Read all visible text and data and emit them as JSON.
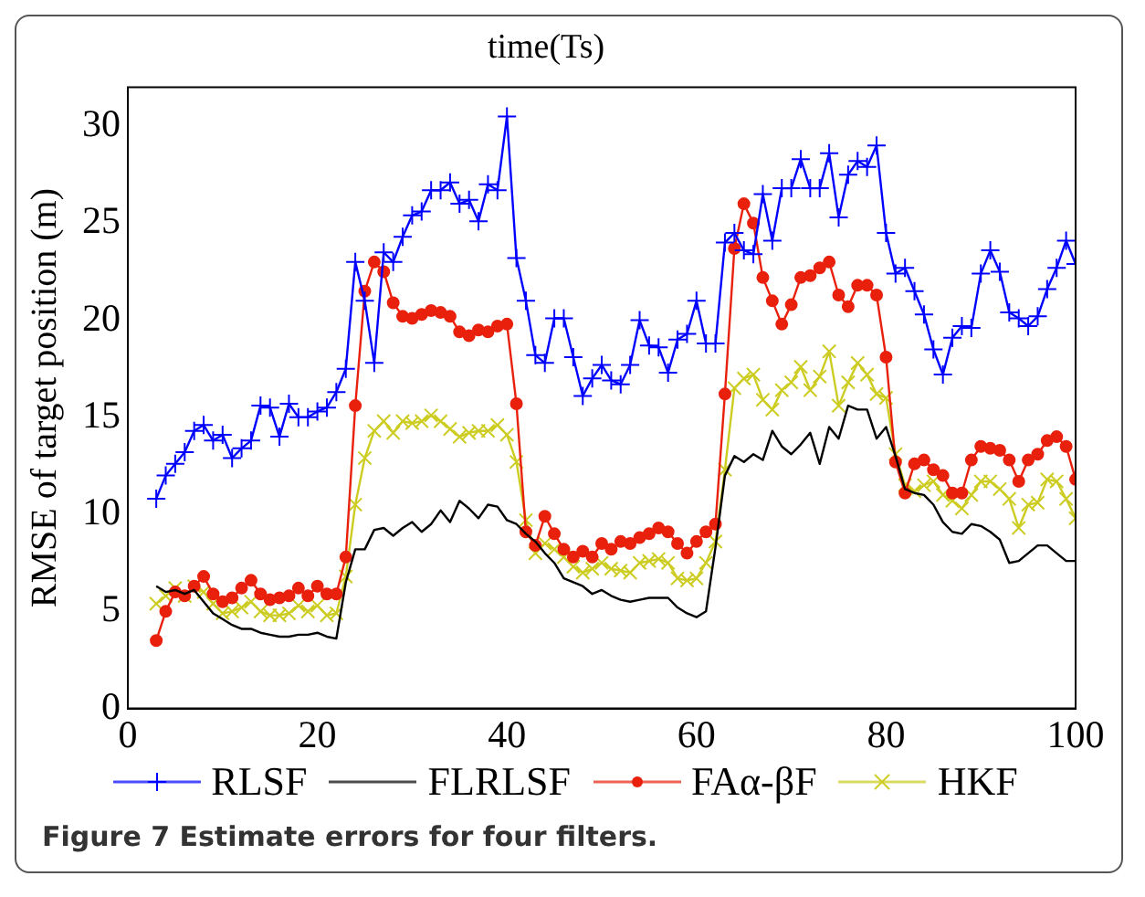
{
  "chart_data": {
    "type": "line",
    "title": "time(Ts)",
    "ylabel": "RMSE of target position (m)",
    "annotations": [
      "Figure 7 Estimate errors for four filters."
    ],
    "x": [
      3,
      4,
      5,
      6,
      7,
      8,
      9,
      10,
      11,
      12,
      13,
      14,
      15,
      16,
      17,
      18,
      19,
      20,
      21,
      22,
      23,
      24,
      25,
      26,
      27,
      28,
      29,
      30,
      31,
      32,
      33,
      34,
      35,
      36,
      37,
      38,
      39,
      40,
      41,
      42,
      43,
      44,
      45,
      46,
      47,
      48,
      49,
      50,
      51,
      52,
      53,
      54,
      55,
      56,
      57,
      58,
      59,
      60,
      61,
      62,
      63,
      64,
      65,
      66,
      67,
      68,
      69,
      70,
      71,
      72,
      73,
      74,
      75,
      76,
      77,
      78,
      79,
      80,
      81,
      82,
      83,
      84,
      85,
      86,
      87,
      88,
      89,
      90,
      91,
      92,
      93,
      94,
      95,
      96,
      97,
      98,
      99,
      100
    ],
    "series": [
      {
        "name": "RLSF",
        "color": "#0000ff",
        "marker": "cross",
        "values": [
          10.8,
          12,
          12.6,
          13.2,
          14.3,
          14.6,
          13.8,
          14.1,
          12.9,
          13.4,
          13.8,
          15.6,
          15.5,
          14,
          15.7,
          15,
          15,
          15.3,
          15.5,
          16.3,
          17.5,
          23,
          21,
          17.8,
          23.5,
          23,
          24.3,
          25.4,
          25.6,
          26.7,
          26.7,
          27.1,
          26,
          26.2,
          25.1,
          27,
          26.7,
          30.5,
          23.2,
          21,
          18.2,
          17.8,
          20.1,
          20.1,
          18.1,
          16.1,
          17,
          17.7,
          16.9,
          16.7,
          17.7,
          20,
          18.7,
          18.6,
          17.3,
          19,
          19.3,
          21,
          18.8,
          18.8,
          24,
          24.5,
          23.6,
          23.4,
          26.5,
          24.1,
          26.8,
          26.8,
          28.3,
          26.8,
          26.8,
          28.6,
          25.3,
          27.5,
          28.2,
          27.9,
          29,
          24.5,
          22.4,
          22.7,
          21.5,
          20.3,
          18.5,
          17.2,
          19.1,
          19.7,
          19.6,
          22.4,
          23.6,
          22.5,
          20.4,
          20.1,
          19.7,
          20.2,
          21.6,
          22.7,
          24.1,
          22.9
        ]
      },
      {
        "name": "FLRLSF",
        "color": "#000000",
        "marker": "none",
        "values": [
          6.3,
          6,
          6.1,
          5.9,
          6.1,
          5.5,
          4.9,
          4.6,
          4.3,
          4.1,
          4.1,
          3.9,
          3.8,
          3.7,
          3.7,
          3.8,
          3.8,
          3.9,
          3.7,
          3.6,
          6.5,
          8.2,
          8.2,
          9.2,
          9.3,
          8.9,
          9.3,
          9.6,
          9.1,
          9.5,
          10.2,
          9.6,
          10.7,
          10.3,
          9.8,
          10.5,
          10.4,
          9.7,
          9.5,
          9,
          8.6,
          8,
          7.5,
          6.7,
          6.5,
          6.3,
          5.9,
          6.1,
          5.8,
          5.6,
          5.5,
          5.6,
          5.7,
          5.7,
          5.7,
          5.2,
          4.9,
          4.7,
          5,
          8.3,
          12,
          13,
          12.7,
          13.1,
          12.8,
          14.3,
          13.5,
          13.1,
          13.6,
          14.2,
          12.6,
          14.5,
          13.9,
          15.6,
          15.4,
          15.4,
          13.9,
          14.5,
          13,
          11.3,
          11.1,
          11,
          10.5,
          9.6,
          9.1,
          9,
          9.5,
          9.4,
          9.1,
          8.7,
          7.5,
          7.6,
          8,
          8.4,
          8.4,
          8,
          7.6,
          7.6
        ]
      },
      {
        "name": "FAα-βF",
        "color": "#e8200c",
        "marker": "circle",
        "values": [
          3.5,
          5,
          6,
          5.8,
          6.3,
          6.8,
          5.9,
          5.5,
          5.7,
          6.2,
          6.6,
          5.9,
          5.6,
          5.7,
          5.8,
          6.2,
          5.8,
          6.3,
          5.9,
          5.9,
          7.8,
          15.6,
          21.5,
          23,
          22.5,
          20.9,
          20.2,
          20.1,
          20.3,
          20.5,
          20.4,
          20.2,
          19.4,
          19.2,
          19.5,
          19.4,
          19.7,
          19.8,
          15.7,
          9.1,
          8.4,
          9.9,
          9,
          8.2,
          7.8,
          8.1,
          7.8,
          8.5,
          8.2,
          8.6,
          8.5,
          8.8,
          9,
          9.3,
          9.1,
          8.5,
          8,
          8.6,
          9.1,
          9.5,
          16.2,
          23.7,
          26,
          25,
          22.2,
          21,
          19.8,
          20.8,
          22.2,
          22.3,
          22.7,
          23,
          21.3,
          20.7,
          21.8,
          21.8,
          21.3,
          18.1,
          12.7,
          11.1,
          12.6,
          12.8,
          12.3,
          12,
          11.1,
          11.1,
          12.8,
          13.5,
          13.4,
          13.3,
          12.8,
          11.7,
          12.8,
          13.1,
          13.8,
          14,
          13.5,
          11.8
        ]
      },
      {
        "name": "HKF",
        "color": "#cccc22",
        "marker": "x",
        "values": [
          5.4,
          5.8,
          6.2,
          5.8,
          6.3,
          6,
          5.4,
          4.9,
          5,
          5.2,
          5.5,
          5,
          4.8,
          4.8,
          4.9,
          5.3,
          5,
          5.3,
          4.8,
          4.9,
          6.8,
          10.5,
          12.9,
          14.3,
          14.8,
          14.2,
          14.8,
          14.7,
          14.8,
          15.1,
          14.8,
          14.4,
          14,
          14.2,
          14.3,
          14.3,
          14.6,
          14.1,
          12.7,
          9.7,
          8,
          8.5,
          8.2,
          7.8,
          7.3,
          7,
          7.2,
          7.5,
          7.2,
          7.1,
          7,
          7.5,
          7.6,
          7.7,
          7.5,
          6.7,
          6.6,
          6.7,
          7.5,
          8.6,
          12.3,
          16.5,
          17,
          17.2,
          15.9,
          15.4,
          16.4,
          16.8,
          17.6,
          16.4,
          17.1,
          18.4,
          15.6,
          16.8,
          17.8,
          17.2,
          16.2,
          16,
          13.1,
          11.5,
          11.2,
          11.5,
          11.7,
          11,
          10.7,
          10.3,
          11,
          11.7,
          11.7,
          11.3,
          10.8,
          9.3,
          10.5,
          10.6,
          11.8,
          11.7,
          10.8,
          9.8
        ]
      }
    ],
    "xlim": [
      0,
      100
    ],
    "xticks": [
      0,
      20,
      40,
      60,
      80,
      100
    ],
    "ylim": [
      0,
      32
    ],
    "yticks": [
      0,
      5,
      10,
      15,
      20,
      25,
      30
    ],
    "grid": false,
    "legend": "bottom"
  }
}
